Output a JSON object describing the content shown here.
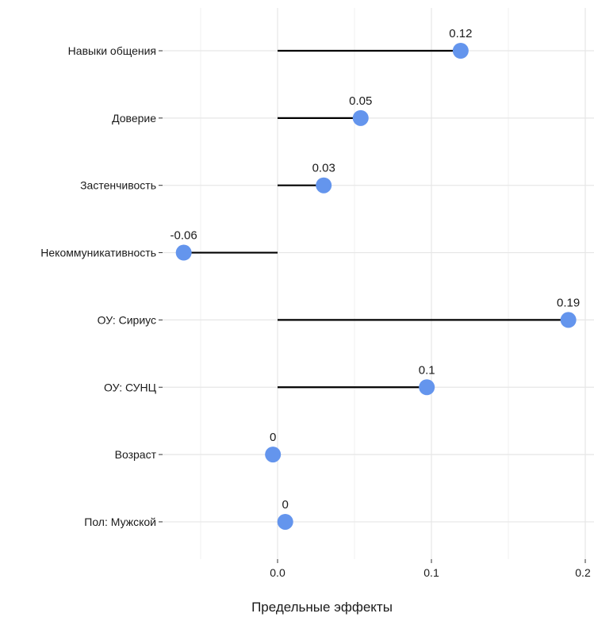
{
  "chart_data": {
    "type": "lollipop",
    "title": "",
    "xlabel": "Предельные эффекты",
    "ylabel": "",
    "xlim": [
      -0.074,
      0.2
    ],
    "x_ticks": [
      {
        "value": 0.0,
        "label": "0.0"
      },
      {
        "value": 0.1,
        "label": "0.1"
      },
      {
        "value": 0.2,
        "label": "0.2"
      }
    ],
    "grid": true,
    "legend": "none",
    "point_color": "#6495ED",
    "segment_color": "#000000",
    "categories": [
      "Навыки общения",
      "Доверие",
      "Застенчивость",
      "Некоммуникативность",
      "ОУ: Сириус",
      "ОУ: СУНЦ",
      "Возраст",
      "Пол: Мужской"
    ],
    "values": [
      0.119,
      0.054,
      0.03,
      -0.061,
      0.189,
      0.097,
      -0.003,
      0.005
    ],
    "data_labels": [
      "0.12",
      "0.05",
      "0.03",
      "-0.06",
      "0.19",
      "0.1",
      "0",
      "0"
    ]
  }
}
